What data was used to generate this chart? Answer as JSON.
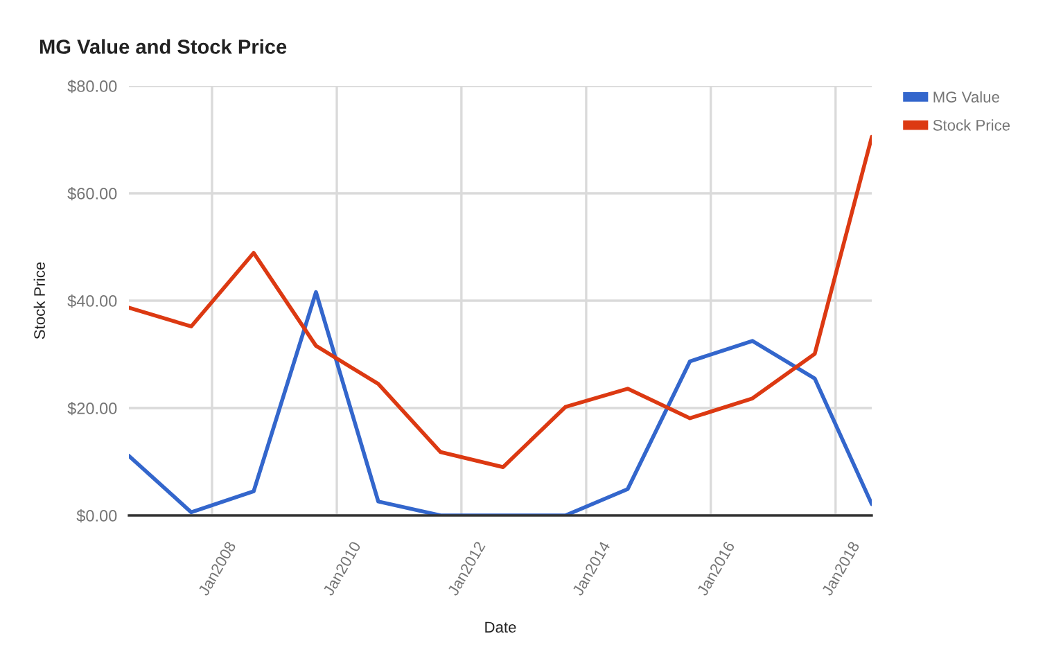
{
  "chart_data": {
    "type": "line",
    "title": "MG Value and Stock Price",
    "xlabel": "Date",
    "ylabel": "Stock Price",
    "x": [
      "2006-09",
      "2007-09",
      "2008-09",
      "2009-09",
      "2010-09",
      "2011-09",
      "2012-09",
      "2013-09",
      "2014-09",
      "2015-09",
      "2016-09",
      "2017-09",
      "2018-08"
    ],
    "series": [
      {
        "name": "MG Value",
        "color": "#3366cc",
        "values": [
          11.1,
          0.6,
          4.5,
          41.6,
          2.6,
          0,
          0,
          0,
          4.9,
          28.7,
          32.5,
          25.5,
          2.1
        ]
      },
      {
        "name": "Stock Price",
        "color": "#dc3912",
        "values": [
          38.7,
          35.2,
          48.9,
          31.6,
          24.5,
          11.8,
          9.0,
          20.2,
          23.6,
          18.1,
          21.8,
          30.1,
          70.5
        ]
      }
    ],
    "xlim": [
      "2006-09",
      "2018-08"
    ],
    "xticks": [
      {
        "value": "2008-01",
        "label": "Jan2008"
      },
      {
        "value": "2010-01",
        "label": "Jan2010"
      },
      {
        "value": "2012-01",
        "label": "Jan2012"
      },
      {
        "value": "2014-01",
        "label": "Jan2014"
      },
      {
        "value": "2016-01",
        "label": "Jan2016"
      },
      {
        "value": "2018-01",
        "label": "Jan2018"
      }
    ],
    "ylim": [
      0,
      80
    ],
    "yticks": [
      {
        "value": 0,
        "label": "$0.00"
      },
      {
        "value": 20,
        "label": "$20.00"
      },
      {
        "value": 40,
        "label": "$40.00"
      },
      {
        "value": 60,
        "label": "$60.00"
      },
      {
        "value": 80,
        "label": "$80.00"
      }
    ],
    "grid": true,
    "legend": "top right",
    "line_style": "solid",
    "marker": "none"
  }
}
